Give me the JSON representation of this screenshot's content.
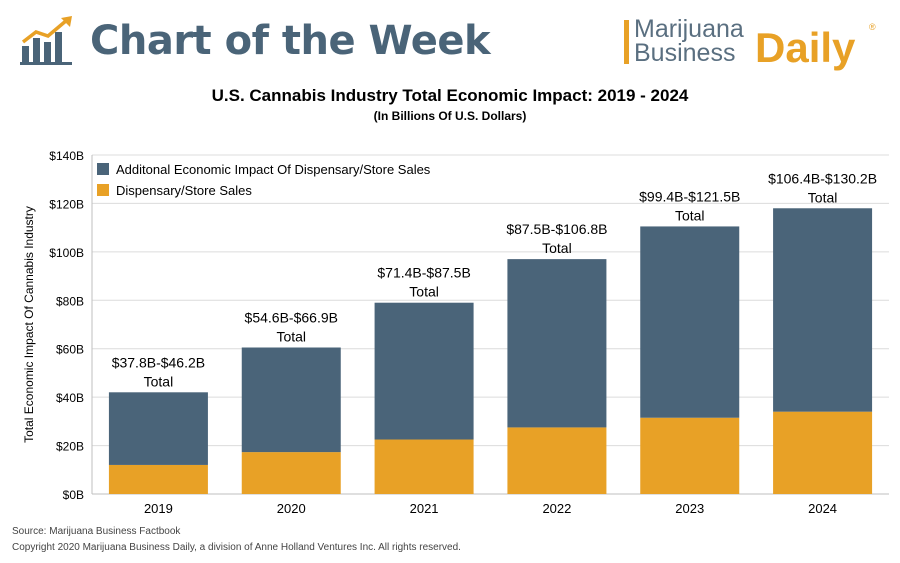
{
  "header": {
    "title": "Chart of the Week",
    "icon": "chart-up-icon",
    "brand": {
      "line1": "Marijuana",
      "line2": "Business",
      "daily": "Daily",
      "reg": "®"
    }
  },
  "colors": {
    "header_text": "#4a6478",
    "additional": "#4a6479",
    "dispensary": "#e8a126",
    "grid": "#dcdcdc"
  },
  "footer": {
    "source": "Source: Marijuana Business Factbook",
    "copyright": "Copyright 2020 Marijuana Business Daily, a division of Anne Holland Ventures Inc. All rights reserved."
  },
  "chart_data": {
    "type": "bar",
    "stacked": true,
    "title": "U.S. Cannabis Industry Total Economic Impact: 2019 - 2024",
    "subtitle": "(In Billions Of U.S. Dollars)",
    "xlabel": "",
    "ylabel": "Total Economic Impact Of Cannabis Industry",
    "ylim": [
      0,
      140
    ],
    "yticks": [
      0,
      20,
      40,
      60,
      80,
      100,
      120,
      140
    ],
    "ytick_labels": [
      "$0B",
      "$20B",
      "$40B",
      "$60B",
      "$80B",
      "$100B",
      "$120B",
      "$140B"
    ],
    "grid": true,
    "legend_position": "top-left",
    "categories": [
      "2019",
      "2020",
      "2021",
      "2022",
      "2023",
      "2024"
    ],
    "series": [
      {
        "name": "Dispensary/Store Sales",
        "color": "#e8a126",
        "values": [
          12,
          17.3,
          22.5,
          27.5,
          31.5,
          34
        ]
      },
      {
        "name": "Additonal Economic Impact Of Dispensary/Store Sales",
        "color": "#4a6479",
        "values": [
          30,
          43.2,
          56.5,
          69.5,
          79,
          84
        ]
      }
    ],
    "legend_order": [
      "Additonal Economic Impact Of Dispensary/Store Sales",
      "Dispensary/Store Sales"
    ],
    "annotations": [
      {
        "range": "$37.8B-$46.2B",
        "label": "Total"
      },
      {
        "range": "$54.6B-$66.9B",
        "label": "Total"
      },
      {
        "range": "$71.4B-$87.5B",
        "label": "Total"
      },
      {
        "range": "$87.5B-$106.8B",
        "label": "Total"
      },
      {
        "range": "$99.4B-$121.5B",
        "label": "Total"
      },
      {
        "range": "$106.4B-$130.2B",
        "label": "Total"
      }
    ]
  }
}
